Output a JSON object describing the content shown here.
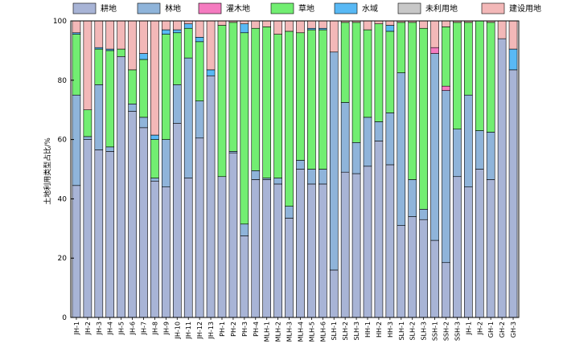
{
  "chart_data": {
    "type": "bar",
    "stacked": true,
    "ylabel": "土地利用类型占比/%",
    "xlabel": "",
    "ylim": [
      0,
      100
    ],
    "yticks": [
      0,
      20,
      40,
      60,
      80,
      100
    ],
    "grid": false,
    "legend_position": "top",
    "categories": [
      "JH-1",
      "JH-2",
      "JH-3",
      "JH-4",
      "JH-5",
      "JH-6",
      "JH-7",
      "JH-8",
      "JH-9",
      "JH-10",
      "JH-11",
      "JH-12",
      "JH-13",
      "PH-1",
      "PH-2",
      "PH-3",
      "PH-4",
      "MLH-1",
      "MLH-2",
      "MLH-3",
      "MLH-4",
      "MLH-5",
      "MLH-6",
      "SLH-1",
      "SLH-2",
      "SLH-3",
      "HH-1",
      "HH-2",
      "HH-3",
      "SLH-1",
      "SLH-2",
      "SLH-3",
      "SSH-1",
      "SSH-2",
      "SSH-3",
      "JH-1",
      "JH-2",
      "GH-1",
      "GH-2",
      "GH-3"
    ],
    "series": [
      {
        "name": "耕地",
        "color": "#a8b4d6",
        "values": [
          44.5,
          60,
          56.5,
          56,
          88,
          69.5,
          64,
          46,
          44,
          65.5,
          47,
          60.5,
          81.5,
          47.5,
          55.5,
          27.5,
          46.5,
          46.5,
          45,
          33.5,
          50,
          45,
          45,
          16,
          49,
          48.5,
          51,
          59.5,
          51.5,
          31,
          34,
          33,
          26,
          18.5,
          47.5,
          44,
          50,
          46.5,
          94,
          83.5
        ]
      },
      {
        "name": "林地",
        "color": "#8fb4da",
        "values": [
          30.5,
          1,
          22,
          1.5,
          0,
          2.5,
          3.5,
          1,
          16,
          13,
          40.5,
          12.5,
          0,
          0,
          0.5,
          4,
          3,
          0.5,
          2,
          4,
          3,
          5,
          5,
          73.5,
          23.5,
          10.5,
          16.5,
          6.5,
          17.5,
          51.5,
          12.5,
          3.5,
          63,
          58,
          16,
          31,
          13,
          16,
          0,
          0
        ]
      },
      {
        "name": "灌木地",
        "color": "#f57bc0",
        "values": [
          0,
          0,
          0,
          0,
          0,
          0,
          0,
          0,
          0,
          0,
          0,
          0,
          0,
          0,
          0,
          0,
          0,
          0,
          0,
          0,
          0,
          0,
          0,
          0,
          0,
          0,
          0,
          0,
          0,
          0,
          0,
          0,
          2,
          1.5,
          0,
          0,
          0,
          0,
          0,
          0
        ]
      },
      {
        "name": "草地",
        "color": "#72ee72",
        "values": [
          20.5,
          9,
          12,
          32.5,
          2.5,
          11.5,
          19.5,
          13,
          35.5,
          17.5,
          10,
          20,
          0,
          51,
          43.5,
          64.5,
          48,
          51,
          48.5,
          59,
          43,
          47,
          47,
          0,
          27,
          40.5,
          29.5,
          33,
          27.5,
          17,
          53,
          61,
          0,
          20,
          36,
          24.5,
          37,
          37,
          0,
          0
        ]
      },
      {
        "name": "水域",
        "color": "#59b9f5",
        "values": [
          0.5,
          0,
          0.5,
          0.5,
          0,
          0,
          2,
          1.5,
          1.5,
          1,
          1.5,
          1.5,
          2,
          0,
          0,
          3,
          0,
          0,
          0,
          0,
          0,
          0.5,
          0.5,
          0,
          0,
          0,
          0,
          0,
          2,
          0,
          0,
          0,
          0,
          0,
          0,
          0,
          0,
          0,
          0,
          7
        ]
      },
      {
        "name": "未利用地",
        "color": "#c8c8c8",
        "values": [
          0,
          0,
          0,
          0,
          0,
          0,
          0,
          0,
          0,
          0,
          0,
          0,
          0,
          0,
          0,
          0,
          0,
          0,
          0,
          0,
          0,
          0,
          0,
          0,
          0,
          0,
          0,
          0,
          0,
          0,
          0,
          0,
          0,
          0,
          0,
          0,
          0,
          0,
          0,
          0
        ]
      },
      {
        "name": "建设用地",
        "color": "#f3b8b8",
        "values": [
          4,
          30,
          9,
          9.5,
          9.5,
          16.5,
          11,
          38.5,
          3,
          3,
          1,
          5.5,
          16.5,
          1.5,
          0.5,
          1,
          2.5,
          2,
          4.5,
          3.5,
          4,
          2.5,
          2.5,
          10.5,
          0.5,
          0.5,
          3,
          1,
          1.5,
          0.5,
          0.5,
          2.5,
          9,
          2,
          0.5,
          0.5,
          0,
          0.5,
          6,
          9.5
        ]
      }
    ]
  }
}
